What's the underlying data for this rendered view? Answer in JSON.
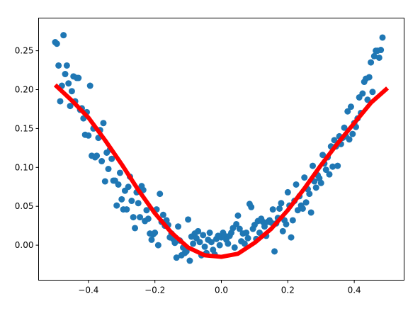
{
  "chart_data": {
    "type": "scatter",
    "title": "",
    "xlabel": "",
    "ylabel": "",
    "xlim": [
      -0.55,
      0.55
    ],
    "ylim": [
      -0.045,
      0.292
    ],
    "grid": false,
    "legend": "none",
    "x_ticks": [
      {
        "value": -0.4,
        "label": "−0.4"
      },
      {
        "value": -0.2,
        "label": "−0.2"
      },
      {
        "value": 0.0,
        "label": "0.0"
      },
      {
        "value": 0.2,
        "label": "0.2"
      },
      {
        "value": 0.4,
        "label": "0.4"
      }
    ],
    "y_ticks": [
      {
        "value": 0.0,
        "label": "0.00"
      },
      {
        "value": 0.05,
        "label": "0.05"
      },
      {
        "value": 0.1,
        "label": "0.10"
      },
      {
        "value": 0.15,
        "label": "0.15"
      },
      {
        "value": 0.2,
        "label": "0.20"
      },
      {
        "value": 0.25,
        "label": "0.25"
      }
    ],
    "series": [
      {
        "kind": "scatter",
        "color": "#1f77b4",
        "points": [
          [
            -0.5,
            0.261
          ],
          [
            -0.495,
            0.259
          ],
          [
            -0.49,
            0.231
          ],
          [
            -0.485,
            0.185
          ],
          [
            -0.48,
            0.205
          ],
          [
            -0.475,
            0.27
          ],
          [
            -0.47,
            0.22
          ],
          [
            -0.465,
            0.231
          ],
          [
            -0.46,
            0.208
          ],
          [
            -0.455,
            0.179
          ],
          [
            -0.45,
            0.198
          ],
          [
            -0.445,
            0.217
          ],
          [
            -0.44,
            0.185
          ],
          [
            -0.435,
            0.215
          ],
          [
            -0.43,
            0.215
          ],
          [
            -0.425,
            0.174
          ],
          [
            -0.42,
            0.176
          ],
          [
            -0.415,
            0.163
          ],
          [
            -0.41,
            0.142
          ],
          [
            -0.405,
            0.171
          ],
          [
            -0.4,
            0.141
          ],
          [
            -0.395,
            0.205
          ],
          [
            -0.39,
            0.115
          ],
          [
            -0.385,
            0.15
          ],
          [
            -0.38,
            0.113
          ],
          [
            -0.375,
            0.115
          ],
          [
            -0.37,
            0.138
          ],
          [
            -0.365,
            0.148
          ],
          [
            -0.36,
            0.108
          ],
          [
            -0.355,
            0.157
          ],
          [
            -0.35,
            0.082
          ],
          [
            -0.345,
            0.119
          ],
          [
            -0.34,
            0.098
          ],
          [
            -0.335,
            0.123
          ],
          [
            -0.33,
            0.111
          ],
          [
            -0.325,
            0.083
          ],
          [
            -0.32,
            0.083
          ],
          [
            -0.315,
            0.051
          ],
          [
            -0.31,
            0.078
          ],
          [
            -0.305,
            0.093
          ],
          [
            -0.3,
            0.059
          ],
          [
            -0.295,
            0.046
          ],
          [
            -0.29,
            0.07
          ],
          [
            -0.285,
            0.046
          ],
          [
            -0.28,
            0.075
          ],
          [
            -0.275,
            0.088
          ],
          [
            -0.27,
            0.057
          ],
          [
            -0.265,
            0.036
          ],
          [
            -0.26,
            0.022
          ],
          [
            -0.255,
            0.068
          ],
          [
            -0.25,
            0.054
          ],
          [
            -0.245,
            0.036
          ],
          [
            -0.24,
            0.076
          ],
          [
            -0.235,
            0.071
          ],
          [
            -0.23,
            0.031
          ],
          [
            -0.225,
            0.045
          ],
          [
            -0.22,
            0.034
          ],
          [
            -0.215,
            0.015
          ],
          [
            -0.21,
            0.007
          ],
          [
            -0.205,
            0.014
          ],
          [
            -0.2,
            0.016
          ],
          [
            -0.195,
            0.046
          ],
          [
            -0.19,
            0.0
          ],
          [
            -0.185,
            0.066
          ],
          [
            -0.18,
            0.03
          ],
          [
            -0.175,
            0.039
          ],
          [
            -0.17,
            0.025
          ],
          [
            -0.165,
            0.032
          ],
          [
            -0.16,
            0.026
          ],
          [
            -0.155,
            0.01
          ],
          [
            -0.15,
            0.015
          ],
          [
            -0.145,
            0.008
          ],
          [
            -0.14,
            0.003
          ],
          [
            -0.135,
            -0.016
          ],
          [
            -0.13,
            0.024
          ],
          [
            -0.125,
            0.006
          ],
          [
            -0.12,
            -0.013
          ],
          [
            -0.115,
            -0.003
          ],
          [
            -0.11,
            -0.01
          ],
          [
            -0.105,
            -0.008
          ],
          [
            -0.1,
            0.033
          ],
          [
            -0.095,
            -0.02
          ],
          [
            -0.09,
            0.011
          ],
          [
            -0.085,
            0.002
          ],
          [
            -0.08,
            0.015
          ],
          [
            -0.075,
            0.009
          ],
          [
            -0.07,
            0.018
          ],
          [
            -0.065,
            0.004
          ],
          [
            -0.06,
            -0.013
          ],
          [
            -0.055,
            0.013
          ],
          [
            -0.05,
            -0.002
          ],
          [
            -0.045,
            -0.01
          ],
          [
            -0.04,
            0.007
          ],
          [
            -0.035,
            0.016
          ],
          [
            -0.03,
            0.004
          ],
          [
            -0.025,
            -0.006
          ],
          [
            -0.02,
            -0.012
          ],
          [
            -0.015,
            0.008
          ],
          [
            -0.01,
            0.012
          ],
          [
            -0.005,
            0.0
          ],
          [
            0.0,
            0.01
          ],
          [
            0.005,
            0.016
          ],
          [
            0.01,
            0.012
          ],
          [
            0.015,
            0.007
          ],
          [
            0.02,
            0.002
          ],
          [
            0.025,
            0.012
          ],
          [
            0.03,
            0.016
          ],
          [
            0.035,
            0.022
          ],
          [
            0.04,
            -0.003
          ],
          [
            0.045,
            0.027
          ],
          [
            0.05,
            0.038
          ],
          [
            0.055,
            0.021
          ],
          [
            0.06,
            0.005
          ],
          [
            0.065,
            0.015
          ],
          [
            0.07,
            0.002
          ],
          [
            0.075,
            0.016
          ],
          [
            0.08,
            0.009
          ],
          [
            0.085,
            0.053
          ],
          [
            0.09,
            0.049
          ],
          [
            0.095,
            0.021
          ],
          [
            0.1,
            0.026
          ],
          [
            0.105,
            0.008
          ],
          [
            0.11,
            0.031
          ],
          [
            0.115,
            0.016
          ],
          [
            0.12,
            0.034
          ],
          [
            0.125,
            0.03
          ],
          [
            0.13,
            0.024
          ],
          [
            0.135,
            0.012
          ],
          [
            0.14,
            0.03
          ],
          [
            0.145,
            0.032
          ],
          [
            0.15,
            0.029
          ],
          [
            0.155,
            0.046
          ],
          [
            0.16,
            -0.008
          ],
          [
            0.165,
            0.028
          ],
          [
            0.17,
            0.035
          ],
          [
            0.175,
            0.047
          ],
          [
            0.18,
            0.054
          ],
          [
            0.185,
            0.018
          ],
          [
            0.19,
            0.032
          ],
          [
            0.195,
            0.027
          ],
          [
            0.2,
            0.068
          ],
          [
            0.205,
            0.051
          ],
          [
            0.21,
            0.01
          ],
          [
            0.215,
            0.032
          ],
          [
            0.22,
            0.057
          ],
          [
            0.225,
            0.078
          ],
          [
            0.23,
            0.045
          ],
          [
            0.235,
            0.063
          ],
          [
            0.24,
            0.051
          ],
          [
            0.245,
            0.047
          ],
          [
            0.25,
            0.087
          ],
          [
            0.255,
            0.055
          ],
          [
            0.26,
            0.072
          ],
          [
            0.265,
            0.066
          ],
          [
            0.27,
            0.042
          ],
          [
            0.275,
            0.102
          ],
          [
            0.28,
            0.082
          ],
          [
            0.285,
            0.074
          ],
          [
            0.29,
            0.09
          ],
          [
            0.295,
            0.086
          ],
          [
            0.3,
            0.08
          ],
          [
            0.305,
            0.116
          ],
          [
            0.31,
            0.105
          ],
          [
            0.315,
            0.097
          ],
          [
            0.32,
            0.113
          ],
          [
            0.325,
            0.091
          ],
          [
            0.33,
            0.127
          ],
          [
            0.335,
            0.101
          ],
          [
            0.34,
            0.135
          ],
          [
            0.345,
            0.127
          ],
          [
            0.35,
            0.102
          ],
          [
            0.355,
            0.14
          ],
          [
            0.36,
            0.13
          ],
          [
            0.365,
            0.138
          ],
          [
            0.37,
            0.151
          ],
          [
            0.375,
            0.14
          ],
          [
            0.38,
            0.172
          ],
          [
            0.385,
            0.136
          ],
          [
            0.39,
            0.178
          ],
          [
            0.395,
            0.143
          ],
          [
            0.4,
            0.157
          ],
          [
            0.405,
            0.152
          ],
          [
            0.41,
            0.163
          ],
          [
            0.415,
            0.19
          ],
          [
            0.42,
            0.17
          ],
          [
            0.425,
            0.195
          ],
          [
            0.43,
            0.21
          ],
          [
            0.435,
            0.214
          ],
          [
            0.44,
            0.187
          ],
          [
            0.445,
            0.216
          ],
          [
            0.45,
            0.235
          ],
          [
            0.455,
            0.197
          ],
          [
            0.46,
            0.243
          ],
          [
            0.465,
            0.25
          ],
          [
            0.47,
            0.25
          ],
          [
            0.475,
            0.241
          ],
          [
            0.48,
            0.251
          ],
          [
            0.485,
            0.267
          ]
        ]
      },
      {
        "kind": "line",
        "color": "#ff0000",
        "x": [
          -0.5,
          -0.45,
          -0.4,
          -0.35,
          -0.3,
          -0.25,
          -0.2,
          -0.15,
          -0.1,
          -0.05,
          0.0,
          0.05,
          0.1,
          0.15,
          0.2,
          0.25,
          0.3,
          0.35,
          0.4,
          0.45,
          0.5
        ],
        "y": [
          0.206,
          0.186,
          0.164,
          0.135,
          0.104,
          0.071,
          0.041,
          0.016,
          -0.003,
          -0.013,
          -0.015,
          -0.011,
          0.003,
          0.021,
          0.045,
          0.073,
          0.103,
          0.131,
          0.157,
          0.183,
          0.202
        ]
      }
    ]
  }
}
